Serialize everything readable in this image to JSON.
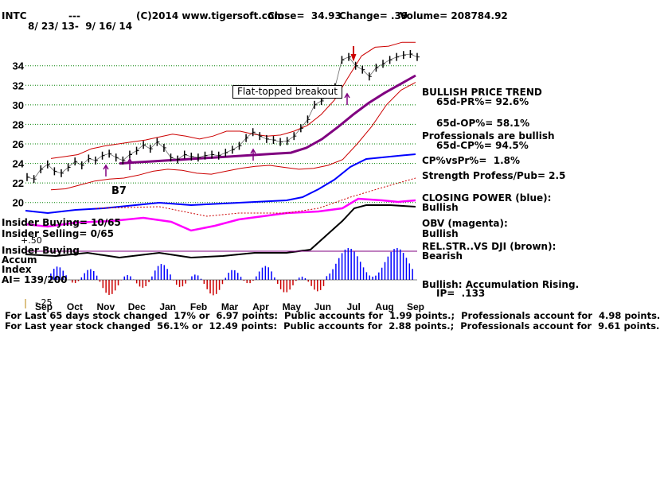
{
  "header": {
    "ticker": "INTC",
    "dashes": "---",
    "copyright": "(C)2014 www.tigersoft.com",
    "close": "Close=  34.93",
    "change": "Change= .39",
    "volume": "Volume= 208784.92",
    "date_range": "8/ 23/ 13-  9/ 16/ 14"
  },
  "colors": {
    "price": "#000000",
    "bands": "#cc0000",
    "moving_average": "#800080",
    "closing_power": "#0000ff",
    "obv": "#ff00ff",
    "accumulation_pos": "#0000ff",
    "accumulation_neg": "#cc0000",
    "grid": "#008000",
    "insider_line": "#800080"
  },
  "annotations": {
    "b7": "B7",
    "breakout": "Flat-topped breakout"
  },
  "right_panel": {
    "l1": "BULLISH PRICE TREND",
    "l2": "65d-PR%= 92.6%",
    "l3": "65d-OP%= 58.1%",
    "l4": "Professionals are bullish",
    "l5": "65d-CP%= 94.5%",
    "l6": "CP%vsPr%=  1.8%",
    "l7": "Strength Profess/Pub= 2.5",
    "l8": "CLOSING POWER (blue):",
    "l9": "Bullish",
    "l10": "OBV (magenta):",
    "l11": "Bullish",
    "l12": "REL.STR..VS DJI (brown):",
    "l13": "Bearish",
    "l14": "Bullish: Accumulation Rising.",
    "l15": "IP=  .133"
  },
  "left_panel": {
    "insider_buying": "Insider Buying= 10/65",
    "insider_selling": "Insider Selling= 0/65",
    "plus50": "+.50",
    "insider_buying2": "Insider Buying",
    "accum": "Accum",
    "index": "Index",
    "ai": "AI= 139/200",
    "minus25": "-.25"
  },
  "footer": {
    "line1": "For Last 65 days stock changed  17% or  6.97 points:  Public accounts for  1.99 points.;  Professionals account for  4.98 points.",
    "line2": "For Last year stock changed  56.1% or  12.49 points:  Public accounts for  2.88 points.;  Professionals account for  9.61 points."
  },
  "chart_data": {
    "type": "line",
    "title": "INTC",
    "x_labels": [
      "Sep",
      "Oct",
      "Nov",
      "Dec",
      "Jan",
      "Feb",
      "Mar",
      "Apr",
      "May",
      "Jun",
      "Jul",
      "Aug",
      "Sep"
    ],
    "y_ticks": [
      20,
      22,
      24,
      26,
      28,
      30,
      32,
      34
    ],
    "ylim": [
      19,
      36.5
    ],
    "grid": true,
    "series": [
      {
        "name": "Price",
        "values": [
          22.6,
          22.4,
          23.4,
          23.9,
          23.2,
          23.0,
          23.6,
          24.2,
          23.8,
          24.5,
          24.3,
          24.8,
          25.0,
          24.6,
          24.3,
          24.9,
          25.3,
          25.9,
          25.5,
          26.2,
          25.6,
          24.6,
          24.4,
          24.9,
          24.7,
          24.6,
          24.8,
          24.9,
          24.8,
          25.1,
          25.4,
          25.8,
          26.6,
          27.2,
          26.8,
          26.5,
          26.4,
          26.2,
          26.3,
          26.8,
          27.6,
          28.5,
          30.0,
          30.4,
          31.1,
          31.8,
          34.6,
          34.9,
          34.0,
          33.6,
          32.9,
          33.8,
          34.2,
          34.6,
          34.9,
          35.1,
          35.2,
          34.9
        ]
      },
      {
        "name": "Moving Average",
        "values": [
          24.0,
          24.1,
          24.2,
          24.3,
          24.4,
          24.5,
          24.6,
          24.7,
          24.8,
          24.9,
          25.0,
          25.1,
          25.6,
          26.5,
          27.7,
          29.0,
          30.2,
          31.2,
          32.1,
          33.0
        ]
      },
      {
        "name": "Upper Band",
        "values": [
          24.5,
          24.7,
          24.9,
          25.5,
          25.8,
          26.0,
          26.2,
          26.4,
          26.7,
          27.0,
          26.8,
          26.5,
          26.8,
          27.3,
          27.3,
          27.0,
          26.8,
          26.9,
          27.3,
          27.9,
          29.0,
          30.5,
          32.8,
          35.0,
          35.9,
          36.0,
          36.4,
          36.4
        ]
      },
      {
        "name": "Lower Band",
        "values": [
          21.3,
          21.4,
          21.8,
          22.2,
          22.4,
          22.5,
          22.8,
          23.2,
          23.4,
          23.3,
          23.0,
          22.9,
          23.2,
          23.5,
          23.7,
          23.8,
          23.6,
          23.4,
          23.5,
          23.8,
          24.4,
          26.0,
          27.8,
          30.0,
          31.5,
          32.3
        ]
      }
    ]
  }
}
